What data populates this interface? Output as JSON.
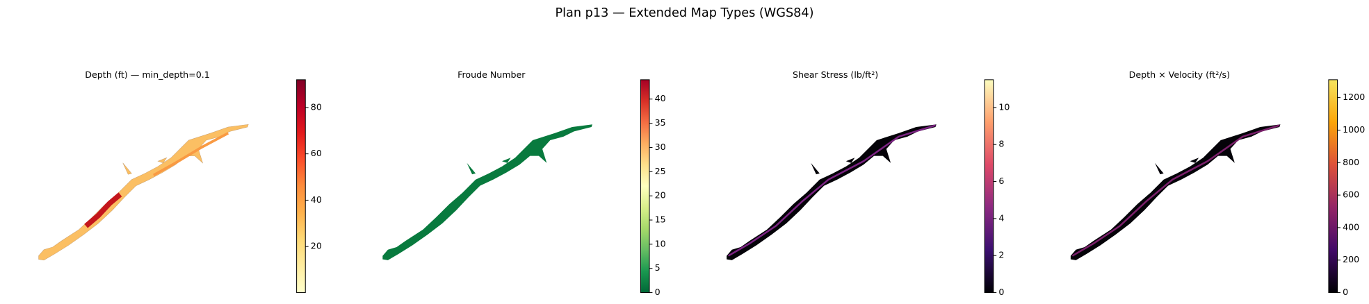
{
  "title": "Plan p13 — Extended Map Types (WGS84)",
  "chart_data": [
    {
      "type": "map",
      "title": "Depth (ft) — min_depth=0.1",
      "clim": [
        0.1,
        92
      ],
      "cticks": [
        20,
        40,
        60,
        80
      ],
      "colors": [
        "#ffffcc",
        "#ffeda0",
        "#fed976",
        "#feb24c",
        "#fd8d3c",
        "#fc4e2a",
        "#e31a1c",
        "#bd0026",
        "#800026"
      ]
    },
    {
      "type": "map",
      "title": "Froude Number",
      "clim": [
        0,
        44
      ],
      "cticks": [
        0,
        5,
        10,
        15,
        20,
        25,
        30,
        35,
        40
      ],
      "colors": [
        "#006837",
        "#1a9850",
        "#66bd63",
        "#a6d96a",
        "#d9ef8b",
        "#ffffbf",
        "#fee08b",
        "#fdae61",
        "#f46d43",
        "#d73027",
        "#a50026"
      ]
    },
    {
      "type": "map",
      "title": "Shear Stress (lb/ft²)",
      "clim": [
        0,
        11.5
      ],
      "cticks": [
        0,
        2,
        4,
        6,
        8,
        10
      ],
      "colors": [
        "#000004",
        "#3b0f70",
        "#8c2981",
        "#de4968",
        "#fe9f6d",
        "#fcfdbf"
      ]
    },
    {
      "type": "map",
      "title": "Depth × Velocity (ft²/s)",
      "clim": [
        0,
        1310
      ],
      "cticks": [
        0,
        200,
        400,
        600,
        800,
        1000,
        1200
      ],
      "colors": [
        "#000004",
        "#420a68",
        "#932667",
        "#dd513a",
        "#fca50a",
        "#f6e45e"
      ]
    }
  ]
}
